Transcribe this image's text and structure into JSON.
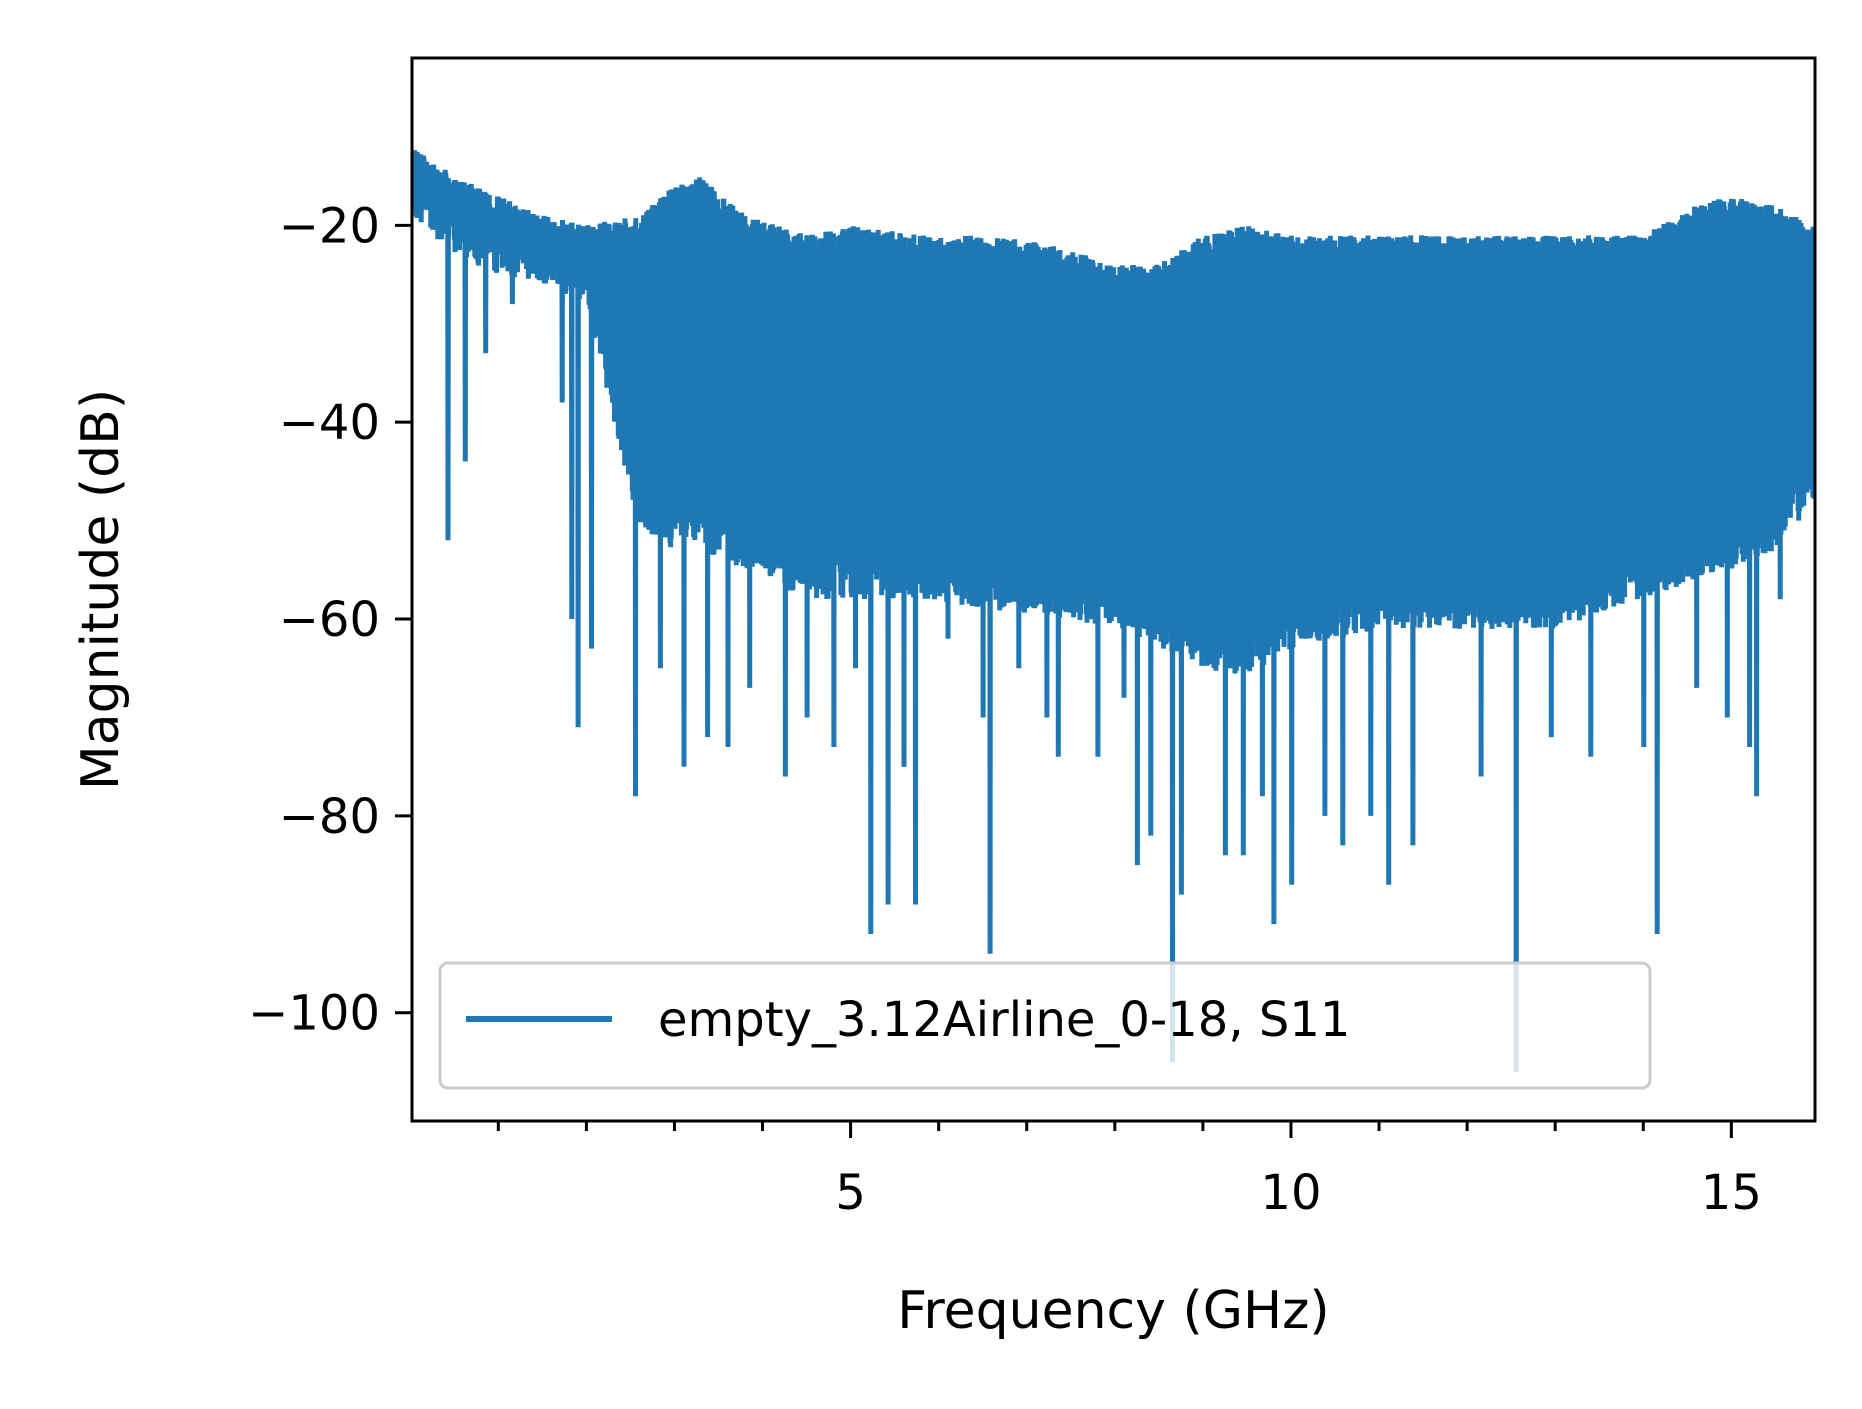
{
  "chart_data": {
    "type": "line",
    "title": "",
    "xlabel": "Frequency (GHz)",
    "ylabel": "Magnitude (dB)",
    "xlim": [
      0.02,
      15.95
    ],
    "ylim": [
      -111,
      -3
    ],
    "x_major_ticks": [
      5,
      10,
      15
    ],
    "x_tick_labels": [
      "5",
      "10",
      "15"
    ],
    "x_minor_tick_step": 1,
    "y_ticks": [
      -20,
      -40,
      -60,
      -80,
      -100
    ],
    "y_tick_labels": [
      "−20",
      "−40",
      "−60",
      "−80",
      "−100"
    ],
    "grid": false,
    "legend_position": "lower-left",
    "series": [
      {
        "name": "empty_3.12Airline_0-18, S11",
        "color": "#1f77b4",
        "x_start": 0.02,
        "x_end": 15.95,
        "upper_envelope": {
          "x": [
            0.02,
            0.5,
            1.0,
            1.5,
            2.0,
            2.6,
            3.0,
            3.3,
            3.8,
            4.5,
            5.0,
            5.8,
            6.6,
            7.3,
            8.0,
            8.5,
            9.0,
            9.5,
            10.0,
            11.0,
            12.0,
            13.0,
            14.0,
            14.6,
            15.0,
            15.5,
            15.95
          ],
          "y": [
            -12,
            -15,
            -17,
            -19,
            -20,
            -19,
            -16,
            -15,
            -19,
            -21,
            -20,
            -21,
            -21,
            -22,
            -24,
            -24,
            -21,
            -20,
            -21,
            -21,
            -21,
            -21,
            -21,
            -18,
            -17,
            -18,
            -20
          ]
        },
        "lower_envelope": {
          "x": [
            0.02,
            0.5,
            1.0,
            1.5,
            2.0,
            2.6,
            3.0,
            3.3,
            3.8,
            4.5,
            5.0,
            5.8,
            6.6,
            7.3,
            8.0,
            8.5,
            9.0,
            9.5,
            10.0,
            11.0,
            12.0,
            13.0,
            14.0,
            14.6,
            15.0,
            15.5,
            15.95
          ],
          "y": [
            -16,
            -20,
            -22,
            -23,
            -25,
            -48,
            -50,
            -50,
            -52,
            -55,
            -55,
            -55,
            -56,
            -57,
            -58,
            -60,
            -62,
            -63,
            -60,
            -58,
            -58,
            -58,
            -55,
            -53,
            -52,
            -50,
            -45
          ]
        },
        "notches": [
          {
            "x": 0.42,
            "y": -52
          },
          {
            "x": 0.62,
            "y": -44
          },
          {
            "x": 0.85,
            "y": -33
          },
          {
            "x": 1.15,
            "y": -28
          },
          {
            "x": 1.72,
            "y": -38
          },
          {
            "x": 1.83,
            "y": -60
          },
          {
            "x": 1.9,
            "y": -71
          },
          {
            "x": 2.05,
            "y": -63
          },
          {
            "x": 2.55,
            "y": -78
          },
          {
            "x": 2.83,
            "y": -65
          },
          {
            "x": 3.1,
            "y": -75
          },
          {
            "x": 3.37,
            "y": -72
          },
          {
            "x": 3.6,
            "y": -73
          },
          {
            "x": 3.85,
            "y": -67
          },
          {
            "x": 4.25,
            "y": -76
          },
          {
            "x": 4.5,
            "y": -70
          },
          {
            "x": 4.8,
            "y": -73
          },
          {
            "x": 5.05,
            "y": -65
          },
          {
            "x": 5.22,
            "y": -92
          },
          {
            "x": 5.42,
            "y": -89
          },
          {
            "x": 5.6,
            "y": -75
          },
          {
            "x": 5.73,
            "y": -89
          },
          {
            "x": 6.1,
            "y": -62
          },
          {
            "x": 6.5,
            "y": -70
          },
          {
            "x": 6.58,
            "y": -94
          },
          {
            "x": 6.9,
            "y": -65
          },
          {
            "x": 7.22,
            "y": -70
          },
          {
            "x": 7.35,
            "y": -74
          },
          {
            "x": 7.8,
            "y": -74
          },
          {
            "x": 8.1,
            "y": -68
          },
          {
            "x": 8.25,
            "y": -85
          },
          {
            "x": 8.4,
            "y": -82
          },
          {
            "x": 8.65,
            "y": -105
          },
          {
            "x": 8.75,
            "y": -88
          },
          {
            "x": 9.25,
            "y": -84
          },
          {
            "x": 9.45,
            "y": -84
          },
          {
            "x": 9.67,
            "y": -78
          },
          {
            "x": 9.8,
            "y": -91
          },
          {
            "x": 10.0,
            "y": -87
          },
          {
            "x": 10.38,
            "y": -80
          },
          {
            "x": 10.58,
            "y": -83
          },
          {
            "x": 10.9,
            "y": -80
          },
          {
            "x": 11.1,
            "y": -87
          },
          {
            "x": 11.38,
            "y": -83
          },
          {
            "x": 12.15,
            "y": -76
          },
          {
            "x": 12.55,
            "y": -106
          },
          {
            "x": 12.95,
            "y": -72
          },
          {
            "x": 13.4,
            "y": -74
          },
          {
            "x": 14.0,
            "y": -73
          },
          {
            "x": 14.15,
            "y": -92
          },
          {
            "x": 14.6,
            "y": -67
          },
          {
            "x": 14.95,
            "y": -70
          },
          {
            "x": 15.2,
            "y": -73
          },
          {
            "x": 15.28,
            "y": -78
          },
          {
            "x": 15.55,
            "y": -58
          }
        ]
      }
    ]
  }
}
